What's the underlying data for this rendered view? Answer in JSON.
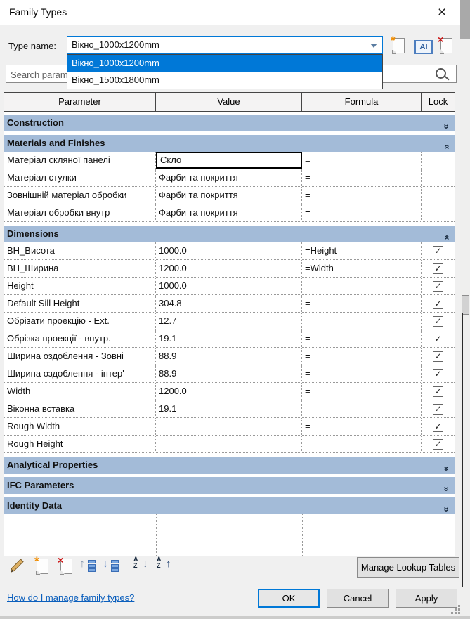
{
  "colors": {
    "accent": "#0078d7",
    "section_header_bg": "#a3bbd8",
    "selection_bg": "#0078d7",
    "link": "#0b5fbd"
  },
  "window": {
    "title": "Family Types",
    "close_icon": "×"
  },
  "type_selector": {
    "label": "Type name:",
    "value": "Вікно_1000x1200mm",
    "options": [
      "Вікно_1000x1200mm",
      "Вікно_1500x1800mm"
    ],
    "selected_index": 0,
    "buttons": [
      {
        "name": "new-type",
        "icon": "paper-with-star"
      },
      {
        "name": "rename-type",
        "icon": "ai-text-box",
        "glyph": "AI"
      },
      {
        "name": "delete-type",
        "icon": "paper-with-red-x"
      }
    ]
  },
  "search": {
    "placeholder": "Search parameters",
    "icon": "magnifier"
  },
  "table": {
    "headers": [
      "Parameter",
      "Value",
      "Formula",
      "Lock"
    ],
    "sections": [
      {
        "label": "Construction",
        "collapsed": true,
        "rows": []
      },
      {
        "label": "Materials and Finishes",
        "collapsed": false,
        "rows": [
          {
            "param": "Матеріал скляної панелі",
            "value": "Скло",
            "formula": "=",
            "lock": "none",
            "value_selected": true
          },
          {
            "param": "Матеріал стулки",
            "value": "Фарби та покриття",
            "formula": "=",
            "lock": "none"
          },
          {
            "param": "Зовнішній матеріал обробки",
            "value": "Фарби та покриття",
            "formula": "=",
            "lock": "none"
          },
          {
            "param": "Матеріал обробки внутр",
            "value": "Фарби та покриття",
            "formula": "=",
            "lock": "none"
          }
        ]
      },
      {
        "label": "Dimensions",
        "collapsed": false,
        "rows": [
          {
            "param": "ВН_Висота",
            "value": "1000.0",
            "formula": "=Height",
            "lock": "checked"
          },
          {
            "param": "ВН_Ширина",
            "value": "1200.0",
            "formula": "=Width",
            "lock": "checked"
          },
          {
            "param": "Height",
            "value": "1000.0",
            "formula": "=",
            "lock": "checked"
          },
          {
            "param": "Default Sill Height",
            "value": "304.8",
            "formula": "=",
            "lock": "checked"
          },
          {
            "param": "Обрізати проекцію - Ext.",
            "value": "12.7",
            "formula": "=",
            "lock": "checked"
          },
          {
            "param": "Обрізка проекції - внутр.",
            "value": "19.1",
            "formula": "=",
            "lock": "checked"
          },
          {
            "param": "Ширина оздоблення - Зовні",
            "value": "88.9",
            "formula": "=",
            "lock": "checked"
          },
          {
            "param": "Ширина оздоблення - інтер'",
            "value": "88.9",
            "formula": "=",
            "lock": "checked"
          },
          {
            "param": "Width",
            "value": "1200.0",
            "formula": "=",
            "lock": "checked"
          },
          {
            "param": "Віконна вставка",
            "value": "19.1",
            "formula": "=",
            "lock": "checked"
          },
          {
            "param": "Rough Width",
            "value": "",
            "formula": "=",
            "lock": "checked"
          },
          {
            "param": "Rough Height",
            "value": "",
            "formula": "=",
            "lock": "checked"
          }
        ]
      },
      {
        "label": "Analytical Properties",
        "collapsed": true,
        "rows": []
      },
      {
        "label": "IFC Parameters",
        "collapsed": true,
        "rows": []
      },
      {
        "label": "Identity Data",
        "collapsed": true,
        "rows": []
      }
    ],
    "checkbox_glyph": "✓",
    "collapsed_chevron": "double-down",
    "expanded_chevron": "double-up"
  },
  "toolbar": {
    "icons": [
      {
        "name": "edit-parameter",
        "icon": "pencil"
      },
      {
        "name": "new-parameter",
        "icon": "paper-with-star"
      },
      {
        "name": "delete-parameter",
        "icon": "paper-with-red-x"
      },
      {
        "name": "move-parameter-up",
        "icon": "up-arrow-bars"
      },
      {
        "name": "move-parameter-down",
        "icon": "down-arrow-bars"
      },
      {
        "name": "sort-ascending",
        "icon": "az-down-arrow",
        "glyph": "AZ↓"
      },
      {
        "name": "sort-descending",
        "icon": "az-up-arrow",
        "glyph": "AZ↑"
      }
    ],
    "manage_lookup_tables_label": "Manage Lookup Tables"
  },
  "footer": {
    "help_link": "How do I manage family types?",
    "ok_label": "OK",
    "cancel_label": "Cancel",
    "apply_label": "Apply"
  }
}
